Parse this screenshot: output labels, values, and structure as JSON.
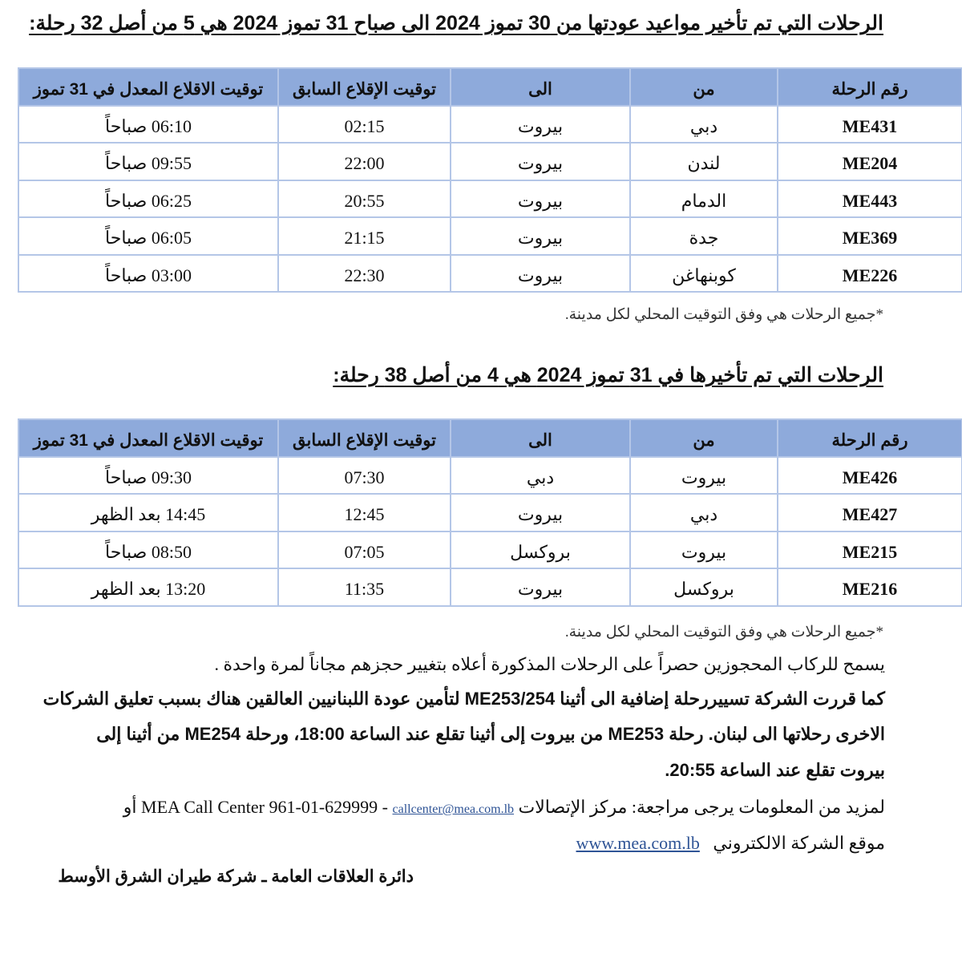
{
  "section1": {
    "title": "الرحلات التي تم تأخير مواعيد عودتها  من 30 تموز 2024 الى صباح 31 تموز 2024 هي 5 من أصل 32 رحلة:",
    "headers": [
      "رقم الرحلة",
      "من",
      "الى",
      "توقيت الإقلاع السابق",
      "توقيت الاقلاع المعدل في 31 تموز"
    ],
    "rows": [
      [
        "ME431",
        "دبي",
        "بيروت",
        "02:15",
        "06:10 صباحاً"
      ],
      [
        "ME204",
        "لندن",
        "بيروت",
        "22:00",
        "09:55 صباحاً"
      ],
      [
        "ME443",
        "الدمام",
        "بيروت",
        "20:55",
        "06:25 صباحاً"
      ],
      [
        "ME369",
        "جدة",
        "بيروت",
        "21:15",
        "06:05 صباحاً"
      ],
      [
        "ME226",
        "كوبنهاغن",
        "بيروت",
        "22:30",
        "03:00 صباحاً"
      ]
    ],
    "note": "*جميع الرحلات هي وفق التوقيت المحلي لكل مدينة."
  },
  "section2": {
    "title": "الرحلات التي تم تأخيرها  في 31 تموز 2024 هي 4 من أصل 38 رحلة:",
    "headers": [
      "رقم الرحلة",
      "من",
      "الى",
      "توقيت الإقلاع السابق",
      "توقيت الاقلاع المعدل في 31 تموز"
    ],
    "rows": [
      [
        "ME426",
        "بيروت",
        "دبي",
        "07:30",
        "09:30 صباحاً"
      ],
      [
        "ME427",
        "دبي",
        "بيروت",
        "12:45",
        "14:45 بعد الظهر"
      ],
      [
        "ME215",
        "بيروت",
        "بروكسل",
        "07:05",
        "08:50 صباحاً"
      ],
      [
        "ME216",
        "بروكسل",
        "بيروت",
        "11:35",
        "13:20 بعد الظهر"
      ]
    ],
    "note": "*جميع الرحلات هي وفق التوقيت المحلي لكل مدينة."
  },
  "body": {
    "line1": "يسمح للركاب المحجوزين حصراً على الرحلات المذكورة أعلاه بتغيير حجزهم مجاناً لمرة واحدة .",
    "line2": "كما قررت الشركة تسييررحلة إضافية الى أثينا ME253/254  لتأمين عودة اللبنانيين العالقين هناك بسبب تعليق الشركات",
    "line3": "الاخرى رحلاتها الى لبنان. رحلة ME253 من بيروت إلى أثينا تقلع عند الساعة 18:00، ورحلة ME254 من أثينا إلى",
    "line4": "بيروت تقلع عند الساعة 20:55.",
    "contact_text": "لمزيد من المعلومات يرجى مراجعة: مركز الإتصالات MEA Call Center 961-01-629999 - ",
    "email": "callcenter@mea.com.lb",
    "or": " أو",
    "website_label": "موقع الشركة الالكتروني",
    "website": "www.mea.com.lb",
    "signature": "دائرة العلاقات العامة ـ شركة طيران الشرق الأوسط"
  }
}
